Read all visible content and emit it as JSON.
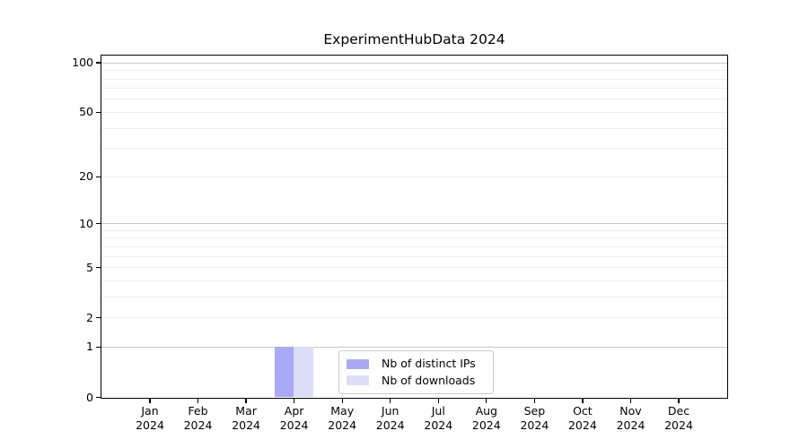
{
  "title": "ExperimentHubData 2024",
  "colors": {
    "distinct_ips": "#a9a9f5",
    "downloads": "#dcddf9",
    "grid_minor": "#ededed",
    "grid_major": "#c8c8c8",
    "axis": "#000000",
    "legend_border": "#cccccc",
    "background": "#ffffff",
    "text": "#000000"
  },
  "legend": {
    "items": [
      {
        "label": "Nb of distinct IPs",
        "color_key": "distinct_ips"
      },
      {
        "label": "Nb of downloads",
        "color_key": "downloads"
      }
    ]
  },
  "x_axis": {
    "months": [
      "Jan",
      "Feb",
      "Mar",
      "Apr",
      "May",
      "Jun",
      "Jul",
      "Aug",
      "Sep",
      "Oct",
      "Nov",
      "Dec"
    ],
    "year": "2024"
  },
  "y_axis": {
    "tick_labels": [
      "0",
      "1",
      "2",
      "5",
      "10",
      "20",
      "50",
      "100"
    ]
  },
  "chart_data": {
    "type": "bar",
    "title": "ExperimentHubData 2024",
    "categories": [
      "Jan 2024",
      "Feb 2024",
      "Mar 2024",
      "Apr 2024",
      "May 2024",
      "Jun 2024",
      "Jul 2024",
      "Aug 2024",
      "Sep 2024",
      "Oct 2024",
      "Nov 2024",
      "Dec 2024"
    ],
    "series": [
      {
        "name": "Nb of distinct IPs",
        "color_key": "distinct_ips",
        "values": [
          0,
          0,
          0,
          1,
          0,
          0,
          0,
          0,
          0,
          0,
          0,
          0
        ]
      },
      {
        "name": "Nb of downloads",
        "color_key": "downloads",
        "values": [
          0,
          0,
          0,
          1,
          0,
          0,
          0,
          0,
          0,
          0,
          0,
          0
        ]
      }
    ],
    "xlabel": "",
    "ylabel": "",
    "yscale": "log1p",
    "ylim": [
      0,
      110
    ],
    "yticks": [
      0,
      1,
      2,
      5,
      10,
      20,
      50,
      100
    ],
    "minor_gridline_values": [
      2,
      3,
      4,
      5,
      6,
      7,
      8,
      9,
      20,
      30,
      40,
      50,
      60,
      70,
      80,
      90
    ],
    "major_gridline_values": [
      1,
      10,
      100
    ],
    "grid": "horizontal",
    "legend_position": "inside-bottom-center"
  }
}
